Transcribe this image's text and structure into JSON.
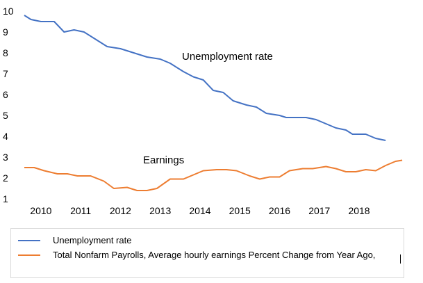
{
  "chart_data": {
    "type": "line",
    "title": "",
    "xlabel": "",
    "ylabel": "",
    "ylim": [
      1,
      10
    ],
    "xlim": [
      "2009-08",
      "2018-10"
    ],
    "y_ticks": [
      "1",
      "2",
      "3",
      "4",
      "5",
      "6",
      "7",
      "8",
      "9",
      "10"
    ],
    "x_ticks": [
      {
        "label": "2010",
        "x": "2010-01"
      },
      {
        "label": "2011",
        "x": "2011-01"
      },
      {
        "label": "2012",
        "x": "2012-01"
      },
      {
        "label": "2013",
        "x": "2013-01"
      },
      {
        "label": "2014",
        "x": "2014-01"
      },
      {
        "label": "2015",
        "x": "2015-01"
      },
      {
        "label": "2016",
        "x": "2016-01"
      },
      {
        "label": "2017",
        "x": "2017-01"
      },
      {
        "label": "2018",
        "x": "2018-01"
      }
    ],
    "grid": false,
    "legend_position": "bottom",
    "series": [
      {
        "name": "Unemployment rate",
        "color": "#4472c4",
        "annotation": "Unemployment rate",
        "points": [
          [
            "2009-08",
            9.8
          ],
          [
            "2009-10",
            9.6
          ],
          [
            "2010-01",
            9.5
          ],
          [
            "2010-05",
            9.5
          ],
          [
            "2010-08",
            9.0
          ],
          [
            "2010-11",
            9.1
          ],
          [
            "2011-02",
            9.0
          ],
          [
            "2011-06",
            8.6
          ],
          [
            "2011-09",
            8.3
          ],
          [
            "2012-01",
            8.2
          ],
          [
            "2012-05",
            8.0
          ],
          [
            "2012-09",
            7.8
          ],
          [
            "2013-01",
            7.7
          ],
          [
            "2013-04",
            7.5
          ],
          [
            "2013-08",
            7.1
          ],
          [
            "2013-11",
            6.85
          ],
          [
            "2014-02",
            6.7
          ],
          [
            "2014-05",
            6.2
          ],
          [
            "2014-08",
            6.1
          ],
          [
            "2014-11",
            5.7
          ],
          [
            "2015-03",
            5.5
          ],
          [
            "2015-06",
            5.4
          ],
          [
            "2015-09",
            5.1
          ],
          [
            "2016-01",
            5.0
          ],
          [
            "2016-03",
            4.9
          ],
          [
            "2016-09",
            4.9
          ],
          [
            "2016-12",
            4.8
          ],
          [
            "2017-03",
            4.6
          ],
          [
            "2017-06",
            4.4
          ],
          [
            "2017-09",
            4.3
          ],
          [
            "2017-11",
            4.1
          ],
          [
            "2018-03",
            4.1
          ],
          [
            "2018-06",
            3.9
          ],
          [
            "2018-09",
            3.8
          ]
        ]
      },
      {
        "name": "Total Nonfarm Payrolls, Average hourly earnings Percent Change from Year Ago,",
        "color": "#ed7d31",
        "annotation": "Earnings",
        "points": [
          [
            "2009-08",
            2.5
          ],
          [
            "2009-11",
            2.5
          ],
          [
            "2010-02",
            2.35
          ],
          [
            "2010-06",
            2.2
          ],
          [
            "2010-09",
            2.2
          ],
          [
            "2010-12",
            2.1
          ],
          [
            "2011-04",
            2.1
          ],
          [
            "2011-08",
            1.85
          ],
          [
            "2011-11",
            1.5
          ],
          [
            "2012-03",
            1.55
          ],
          [
            "2012-06",
            1.4
          ],
          [
            "2012-09",
            1.4
          ],
          [
            "2012-12",
            1.5
          ],
          [
            "2013-04",
            1.95
          ],
          [
            "2013-08",
            1.95
          ],
          [
            "2013-11",
            2.15
          ],
          [
            "2014-02",
            2.35
          ],
          [
            "2014-06",
            2.4
          ],
          [
            "2014-09",
            2.4
          ],
          [
            "2014-12",
            2.35
          ],
          [
            "2015-04",
            2.1
          ],
          [
            "2015-07",
            1.95
          ],
          [
            "2015-10",
            2.05
          ],
          [
            "2016-01",
            2.05
          ],
          [
            "2016-04",
            2.35
          ],
          [
            "2016-08",
            2.45
          ],
          [
            "2016-11",
            2.45
          ],
          [
            "2017-03",
            2.55
          ],
          [
            "2017-06",
            2.45
          ],
          [
            "2017-09",
            2.3
          ],
          [
            "2017-12",
            2.3
          ],
          [
            "2018-03",
            2.4
          ],
          [
            "2018-06",
            2.35
          ],
          [
            "2018-09",
            2.6
          ],
          [
            "2018-12",
            2.8
          ],
          [
            "2019-02",
            2.85
          ]
        ]
      }
    ]
  },
  "legend": {
    "items": [
      {
        "label": "Unemployment rate",
        "color": "#4472c4"
      },
      {
        "label": "Total Nonfarm Payrolls, Average hourly earnings Percent Change from Year Ago,",
        "color": "#ed7d31"
      }
    ]
  }
}
